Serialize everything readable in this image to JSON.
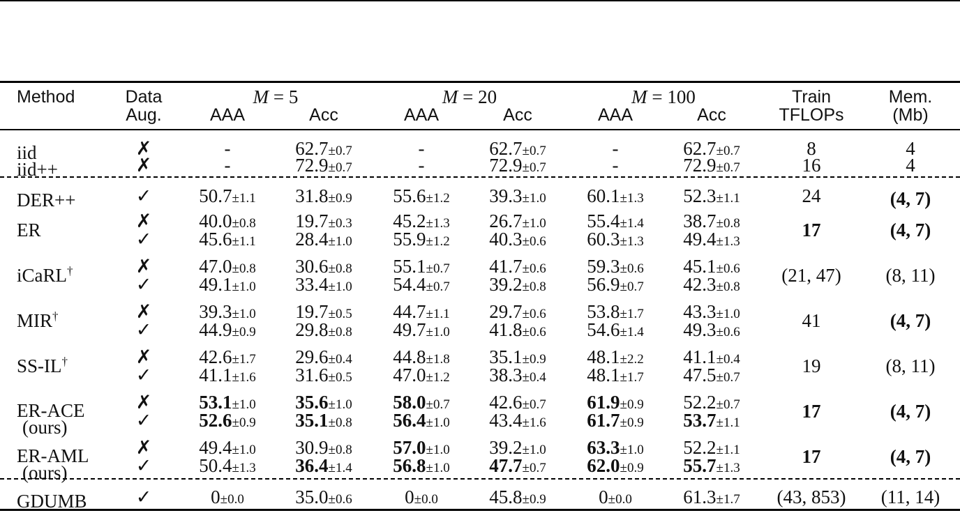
{
  "header": {
    "method": "Method",
    "data_aug": [
      "Data",
      "Aug."
    ],
    "groups": [
      {
        "label_m": "M",
        "label_eq": " = 5"
      },
      {
        "label_m": "M",
        "label_eq": " = 20"
      },
      {
        "label_m": "M",
        "label_eq": " = 100"
      }
    ],
    "aaa": "AAA",
    "acc": "Acc",
    "train": [
      "Train",
      "TFLOPs"
    ],
    "mem": [
      "Mem.",
      "(Mb)"
    ]
  },
  "rows": [
    {
      "method": [
        "iid"
      ],
      "aug": "✗",
      "cells": [
        {
          "v": "-",
          "s": ""
        },
        {
          "v": "62.7",
          "s": "±0.7"
        },
        {
          "v": "-",
          "s": ""
        },
        {
          "v": "62.7",
          "s": "±0.7"
        },
        {
          "v": "-",
          "s": ""
        },
        {
          "v": "62.7",
          "s": "±0.7"
        }
      ],
      "tflops": "8",
      "mem": "4"
    },
    {
      "method": [
        "iid++"
      ],
      "aug": "✗",
      "cells": [
        {
          "v": "-",
          "s": ""
        },
        {
          "v": "72.9",
          "s": "±0.7"
        },
        {
          "v": "-",
          "s": ""
        },
        {
          "v": "72.9",
          "s": "±0.7"
        },
        {
          "v": "-",
          "s": ""
        },
        {
          "v": "72.9",
          "s": "±0.7"
        }
      ],
      "tflops": "16",
      "mem": "4"
    },
    {
      "method": [
        "DER++"
      ],
      "aug": "✓",
      "cells": [
        {
          "v": "50.7",
          "s": "±1.1"
        },
        {
          "v": "31.8",
          "s": "±0.9"
        },
        {
          "v": "55.6",
          "s": "±1.2"
        },
        {
          "v": "39.3",
          "s": "±1.0"
        },
        {
          "v": "60.1",
          "s": "±1.3"
        },
        {
          "v": "52.3",
          "s": "±1.1"
        }
      ],
      "tflops": "24",
      "mem": "(4, 7)",
      "mem_bold": true
    },
    {
      "method": [
        "ER"
      ],
      "aug": [
        "✗",
        "✓"
      ],
      "cells": [
        [
          {
            "v": "40.0",
            "s": "±0.8"
          },
          {
            "v": "19.7",
            "s": "±0.3"
          },
          {
            "v": "45.2",
            "s": "±1.3"
          },
          {
            "v": "26.7",
            "s": "±1.0"
          },
          {
            "v": "55.4",
            "s": "±1.4"
          },
          {
            "v": "38.7",
            "s": "±0.8"
          }
        ],
        [
          {
            "v": "45.6",
            "s": "±1.1"
          },
          {
            "v": "28.4",
            "s": "±1.0"
          },
          {
            "v": "55.9",
            "s": "±1.2"
          },
          {
            "v": "40.3",
            "s": "±0.6"
          },
          {
            "v": "60.3",
            "s": "±1.3"
          },
          {
            "v": "49.4",
            "s": "±1.3"
          }
        ]
      ],
      "tflops": "17",
      "tflops_bold": true,
      "mem": "(4, 7)",
      "mem_bold": true
    },
    {
      "method": [
        "iCaRL"
      ],
      "dagger": "†",
      "aug": [
        "✗",
        "✓"
      ],
      "cells": [
        [
          {
            "v": "47.0",
            "s": "±0.8"
          },
          {
            "v": "30.6",
            "s": "±0.8"
          },
          {
            "v": "55.1",
            "s": "±0.7"
          },
          {
            "v": "41.7",
            "s": "±0.6"
          },
          {
            "v": "59.3",
            "s": "±0.6"
          },
          {
            "v": "45.1",
            "s": "±0.6"
          }
        ],
        [
          {
            "v": "49.1",
            "s": "±1.0"
          },
          {
            "v": "33.4",
            "s": "±1.0"
          },
          {
            "v": "54.4",
            "s": "±0.7"
          },
          {
            "v": "39.2",
            "s": "±0.8"
          },
          {
            "v": "56.9",
            "s": "±0.7"
          },
          {
            "v": "42.3",
            "s": "±0.8"
          }
        ]
      ],
      "tflops": "(21, 47)",
      "mem": "(8, 11)"
    },
    {
      "method": [
        "MIR"
      ],
      "dagger": "†",
      "aug": [
        "✗",
        "✓"
      ],
      "cells": [
        [
          {
            "v": "39.3",
            "s": "±1.0"
          },
          {
            "v": "19.7",
            "s": "±0.5"
          },
          {
            "v": "44.7",
            "s": "±1.1"
          },
          {
            "v": "29.7",
            "s": "±0.6"
          },
          {
            "v": "53.8",
            "s": "±1.7"
          },
          {
            "v": "43.3",
            "s": "±1.0"
          }
        ],
        [
          {
            "v": "44.9",
            "s": "±0.9"
          },
          {
            "v": "29.8",
            "s": "±0.8"
          },
          {
            "v": "49.7",
            "s": "±1.0"
          },
          {
            "v": "41.8",
            "s": "±0.6"
          },
          {
            "v": "54.6",
            "s": "±1.4"
          },
          {
            "v": "49.3",
            "s": "±0.6"
          }
        ]
      ],
      "tflops": "41",
      "mem": "(4, 7)",
      "mem_bold": true
    },
    {
      "method": [
        "SS-IL"
      ],
      "dagger": "†",
      "aug": [
        "✗",
        "✓"
      ],
      "cells": [
        [
          {
            "v": "42.6",
            "s": "±1.7"
          },
          {
            "v": "29.6",
            "s": "±0.4"
          },
          {
            "v": "44.8",
            "s": "±1.8"
          },
          {
            "v": "35.1",
            "s": "±0.9"
          },
          {
            "v": "48.1",
            "s": "±2.2"
          },
          {
            "v": "41.1",
            "s": "±0.4"
          }
        ],
        [
          {
            "v": "41.1",
            "s": "±1.6"
          },
          {
            "v": "31.6",
            "s": "±0.5"
          },
          {
            "v": "47.0",
            "s": "±1.2"
          },
          {
            "v": "38.3",
            "s": "±0.4"
          },
          {
            "v": "48.1",
            "s": "±1.7"
          },
          {
            "v": "47.5",
            "s": "±0.7"
          }
        ]
      ],
      "tflops": "19",
      "mem": "(8, 11)"
    },
    {
      "method": [
        "ER-ACE",
        "(ours)"
      ],
      "aug": [
        "✗",
        "✓"
      ],
      "cells": [
        [
          {
            "v": "53.1",
            "s": "±1.0",
            "b": true
          },
          {
            "v": "35.6",
            "s": "±1.0",
            "b": true
          },
          {
            "v": "58.0",
            "s": "±0.7",
            "b": true
          },
          {
            "v": "42.6",
            "s": "±0.7"
          },
          {
            "v": "61.9",
            "s": "±0.9",
            "b": true
          },
          {
            "v": "52.2",
            "s": "±0.7"
          }
        ],
        [
          {
            "v": "52.6",
            "s": "±0.9",
            "b": true
          },
          {
            "v": "35.1",
            "s": "±0.8",
            "b": true
          },
          {
            "v": "56.4",
            "s": "±1.0",
            "b": true
          },
          {
            "v": "43.4",
            "s": "±1.6"
          },
          {
            "v": "61.7",
            "s": "±0.9",
            "b": true
          },
          {
            "v": "53.7",
            "s": "±1.1",
            "b": true
          }
        ]
      ],
      "tflops": "17",
      "tflops_bold": true,
      "mem": "(4, 7)",
      "mem_bold": true
    },
    {
      "method": [
        "ER-AML",
        "(ours)"
      ],
      "aug": [
        "✗",
        "✓"
      ],
      "cells": [
        [
          {
            "v": "49.4",
            "s": "±1.0"
          },
          {
            "v": "30.9",
            "s": "±0.8"
          },
          {
            "v": "57.0",
            "s": "±1.0",
            "b": true
          },
          {
            "v": "39.2",
            "s": "±1.0"
          },
          {
            "v": "63.3",
            "s": "±1.0",
            "b": true
          },
          {
            "v": "52.2",
            "s": "±1.1"
          }
        ],
        [
          {
            "v": "50.4",
            "s": "±1.3"
          },
          {
            "v": "36.4",
            "s": "±1.4",
            "b": true
          },
          {
            "v": "56.8",
            "s": "±1.0",
            "b": true
          },
          {
            "v": "47.7",
            "s": "±0.7",
            "b": true
          },
          {
            "v": "62.0",
            "s": "±0.9",
            "b": true
          },
          {
            "v": "55.7",
            "s": "±1.3",
            "b": true
          }
        ]
      ],
      "tflops": "17",
      "tflops_bold": true,
      "mem": "(4, 7)",
      "mem_bold": true
    },
    {
      "method": [
        "GDUMB"
      ],
      "aug": "✓",
      "cells": [
        {
          "v": "0",
          "s": "±0.0"
        },
        {
          "v": "35.0",
          "s": "±0.6"
        },
        {
          "v": "0",
          "s": "±0.0"
        },
        {
          "v": "45.8",
          "s": "±0.9"
        },
        {
          "v": "0",
          "s": "±0.0"
        },
        {
          "v": "61.3",
          "s": "±1.7"
        }
      ],
      "tflops": "(43, 853)",
      "mem": "(11, 14)"
    }
  ]
}
